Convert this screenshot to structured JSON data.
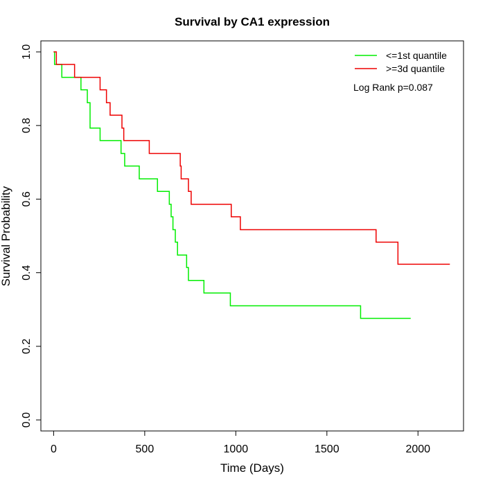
{
  "chart_data": {
    "type": "line",
    "title": "Survival by CA1 expression",
    "xlabel": "Time (Days)",
    "ylabel": "Survival Probability",
    "xlim": [
      -70,
      2250
    ],
    "ylim": [
      -0.03,
      1.03
    ],
    "x_ticks": [
      0,
      500,
      1000,
      1500,
      2000
    ],
    "y_ticks": [
      0.0,
      0.2,
      0.4,
      0.6,
      0.8,
      1.0
    ],
    "x_tick_labels": [
      "0",
      "500",
      "1000",
      "1500",
      "2000"
    ],
    "y_tick_labels": [
      "0.0",
      "0.2",
      "0.4",
      "0.6",
      "0.8",
      "1.0"
    ],
    "legend_position": "top-right",
    "annotation": "Log Rank p=0.087",
    "series": [
      {
        "name": "<=1st quantile",
        "color": "#00ee00",
        "points": [
          [
            0,
            1.0
          ],
          [
            5,
            0.966
          ],
          [
            45,
            0.931
          ],
          [
            150,
            0.897
          ],
          [
            185,
            0.862
          ],
          [
            200,
            0.793
          ],
          [
            255,
            0.759
          ],
          [
            370,
            0.724
          ],
          [
            390,
            0.69
          ],
          [
            470,
            0.655
          ],
          [
            570,
            0.621
          ],
          [
            635,
            0.586
          ],
          [
            645,
            0.552
          ],
          [
            655,
            0.517
          ],
          [
            668,
            0.483
          ],
          [
            680,
            0.448
          ],
          [
            730,
            0.414
          ],
          [
            740,
            0.379
          ],
          [
            825,
            0.345
          ],
          [
            970,
            0.31
          ],
          [
            1685,
            0.276
          ],
          [
            1960,
            0.276
          ]
        ]
      },
      {
        "name": ">=3d quantile",
        "color": "#ee0000",
        "points": [
          [
            0,
            1.0
          ],
          [
            15,
            0.966
          ],
          [
            115,
            0.931
          ],
          [
            255,
            0.897
          ],
          [
            290,
            0.862
          ],
          [
            310,
            0.828
          ],
          [
            375,
            0.793
          ],
          [
            385,
            0.759
          ],
          [
            525,
            0.724
          ],
          [
            695,
            0.69
          ],
          [
            700,
            0.655
          ],
          [
            740,
            0.621
          ],
          [
            755,
            0.586
          ],
          [
            975,
            0.552
          ],
          [
            1025,
            0.517
          ],
          [
            1770,
            0.483
          ],
          [
            1890,
            0.423
          ],
          [
            2175,
            0.423
          ]
        ]
      }
    ]
  }
}
